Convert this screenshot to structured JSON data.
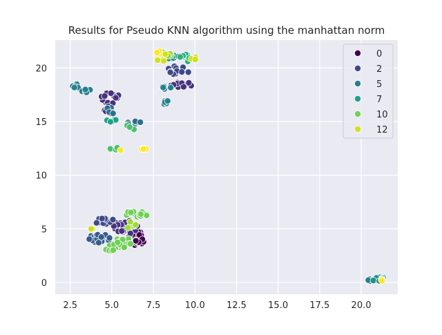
{
  "chart_data": {
    "type": "scatter",
    "title": "Results for Pseudo KNN algorithm using the manhattan norm",
    "xlabel": "",
    "ylabel": "",
    "xlim": [
      1.6,
      22.2
    ],
    "ylim": [
      -1.1,
      22.6
    ],
    "grid": true,
    "x_ticks": [
      "2.5",
      "5.0",
      "7.5",
      "10.0",
      "12.5",
      "15.0",
      "17.5",
      "20.0"
    ],
    "y_ticks": [
      "0",
      "5",
      "10",
      "15",
      "20"
    ],
    "legend_position": "top-right",
    "legend_entries": [
      "0",
      "2",
      "5",
      "7",
      "10",
      "12"
    ],
    "palette": {
      "0": "#440154",
      "1": "#46327e",
      "2": "#3e4989",
      "3": "#365c8d",
      "4": "#2e6e8e",
      "5": "#277f8e",
      "6": "#21918c",
      "7": "#1fa187",
      "8": "#2db27d",
      "9": "#4ac16d",
      "10": "#71cf57",
      "11": "#a0da39",
      "12": "#d0e11c",
      "13": "#fde725"
    },
    "clusters": [
      {
        "label": 0,
        "cx": 6.5,
        "cy": 4.1,
        "rx": 0.5,
        "ry": 0.7,
        "n": 24
      },
      {
        "label": 1,
        "cx": 5.9,
        "cy": 5.2,
        "rx": 0.8,
        "ry": 0.8,
        "n": 22
      },
      {
        "label": 1,
        "cx": 4.9,
        "cy": 17.2,
        "rx": 0.6,
        "ry": 0.5,
        "n": 14
      },
      {
        "label": 1,
        "cx": 4.8,
        "cy": 16.2,
        "rx": 0.3,
        "ry": 0.3,
        "n": 6
      },
      {
        "label": 1,
        "cx": 9.2,
        "cy": 18.4,
        "rx": 0.7,
        "ry": 0.3,
        "n": 12
      },
      {
        "label": 2,
        "cx": 4.6,
        "cy": 5.7,
        "rx": 0.6,
        "ry": 0.3,
        "n": 14
      },
      {
        "label": 2,
        "cx": 8.9,
        "cy": 19.8,
        "rx": 0.8,
        "ry": 0.5,
        "n": 14
      },
      {
        "label": 3,
        "cx": 4.3,
        "cy": 4.1,
        "rx": 0.7,
        "ry": 0.4,
        "n": 18
      },
      {
        "label": 4,
        "cx": 4.9,
        "cy": 16.0,
        "rx": 0.4,
        "ry": 0.3,
        "n": 6
      },
      {
        "label": 4,
        "cx": 6.4,
        "cy": 14.9,
        "rx": 0.6,
        "ry": 0.2,
        "n": 6
      },
      {
        "label": 5,
        "cx": 2.9,
        "cy": 18.3,
        "rx": 0.3,
        "ry": 0.2,
        "n": 6
      },
      {
        "label": 5,
        "cx": 3.4,
        "cy": 17.9,
        "rx": 0.3,
        "ry": 0.2,
        "n": 6
      },
      {
        "label": 5,
        "cx": 8.3,
        "cy": 18.2,
        "rx": 0.3,
        "ry": 0.2,
        "n": 5
      },
      {
        "label": 5,
        "cx": 8.2,
        "cy": 16.8,
        "rx": 0.2,
        "ry": 0.2,
        "n": 6
      },
      {
        "label": 5,
        "cx": 20.6,
        "cy": 0.4,
        "rx": 0.5,
        "ry": 0.3,
        "n": 7
      },
      {
        "label": 6,
        "cx": 21.0,
        "cy": 0.4,
        "rx": 0.4,
        "ry": 0.3,
        "n": 8
      },
      {
        "label": 6,
        "cx": 8.8,
        "cy": 21.0,
        "rx": 0.6,
        "ry": 0.3,
        "n": 10
      },
      {
        "label": 7,
        "cx": 5.0,
        "cy": 15.1,
        "rx": 0.3,
        "ry": 0.2,
        "n": 5
      },
      {
        "label": 8,
        "cx": 9.4,
        "cy": 20.9,
        "rx": 0.5,
        "ry": 0.4,
        "n": 8
      },
      {
        "label": 9,
        "cx": 5.2,
        "cy": 12.5,
        "rx": 0.3,
        "ry": 0.3,
        "n": 5
      },
      {
        "label": 9,
        "cx": 6.1,
        "cy": 14.4,
        "rx": 0.3,
        "ry": 0.3,
        "n": 3
      },
      {
        "label": 10,
        "cx": 6.5,
        "cy": 6.4,
        "rx": 0.7,
        "ry": 0.3,
        "n": 16
      },
      {
        "label": 10,
        "cx": 5.5,
        "cy": 3.7,
        "rx": 0.9,
        "ry": 0.5,
        "n": 20
      },
      {
        "label": 10,
        "cx": 4.9,
        "cy": 3.0,
        "rx": 0.3,
        "ry": 0.3,
        "n": 4
      },
      {
        "label": 10,
        "cx": 8.6,
        "cy": 21.2,
        "rx": 0.4,
        "ry": 0.2,
        "n": 4
      },
      {
        "label": 11,
        "cx": 6.3,
        "cy": 5.3,
        "rx": 0.4,
        "ry": 0.4,
        "n": 6
      },
      {
        "label": 11,
        "cx": 8.2,
        "cy": 21.2,
        "rx": 0.4,
        "ry": 0.3,
        "n": 6
      },
      {
        "label": 12,
        "cx": 8.0,
        "cy": 21.0,
        "rx": 0.4,
        "ry": 0.4,
        "n": 8
      },
      {
        "label": 12,
        "cx": 9.9,
        "cy": 20.9,
        "rx": 0.2,
        "ry": 0.2,
        "n": 4
      },
      {
        "label": 12,
        "cx": 3.8,
        "cy": 4.9,
        "rx": 0.2,
        "ry": 0.1,
        "n": 2
      },
      {
        "label": 13,
        "cx": 6.9,
        "cy": 12.5,
        "rx": 0.2,
        "ry": 0.1,
        "n": 4
      },
      {
        "label": 13,
        "cx": 5.5,
        "cy": 12.3,
        "rx": 0.1,
        "ry": 0.1,
        "n": 1
      },
      {
        "label": 13,
        "cx": 21.2,
        "cy": 0.2,
        "rx": 0.1,
        "ry": 0.1,
        "n": 2
      },
      {
        "label": 13,
        "cx": 7.9,
        "cy": 21.4,
        "rx": 0.3,
        "ry": 0.2,
        "n": 4
      }
    ]
  }
}
